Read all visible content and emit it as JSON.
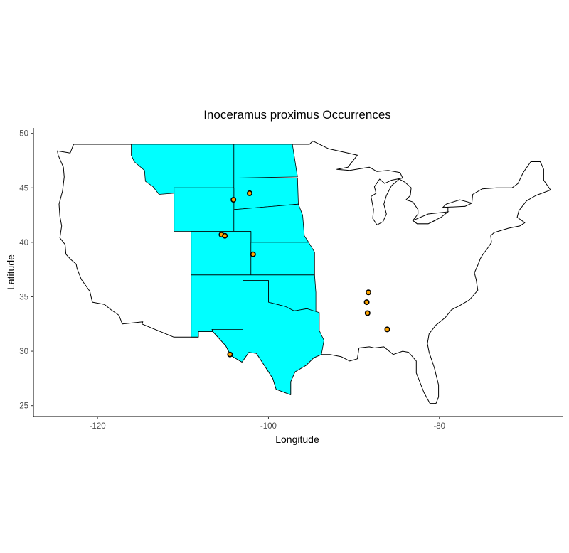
{
  "chart_data": {
    "type": "scatter",
    "title": "Inoceramus proximus Occurrences",
    "xlabel": "Longitude",
    "ylabel": "Latitude",
    "xlim": [
      -127.5,
      -65.5
    ],
    "ylim": [
      24,
      50.5
    ],
    "x_ticks": [
      -120,
      -100,
      -80
    ],
    "y_ticks": [
      25,
      30,
      35,
      40,
      45,
      50
    ],
    "x_tick_labels": [
      "-120",
      "-100",
      "-80"
    ],
    "y_tick_labels": [
      "25",
      "30",
      "35",
      "40",
      "45",
      "50"
    ],
    "grid": false,
    "highlighted_states": [
      "Montana",
      "North Dakota",
      "South Dakota",
      "Wyoming",
      "Nebraska",
      "Colorado",
      "Kansas",
      "New Mexico",
      "Oklahoma",
      "Texas"
    ],
    "highlight_color": "#00ffff",
    "point_fill": "#ffa500",
    "points": [
      {
        "x": -104.1,
        "y": 43.9
      },
      {
        "x": -102.2,
        "y": 44.5
      },
      {
        "x": -105.5,
        "y": 40.7
      },
      {
        "x": -105.1,
        "y": 40.6
      },
      {
        "x": -101.8,
        "y": 38.9
      },
      {
        "x": -104.5,
        "y": 29.7
      },
      {
        "x": -88.3,
        "y": 35.4
      },
      {
        "x": -88.5,
        "y": 34.5
      },
      {
        "x": -88.4,
        "y": 33.5
      },
      {
        "x": -86.1,
        "y": 32.0
      }
    ]
  }
}
